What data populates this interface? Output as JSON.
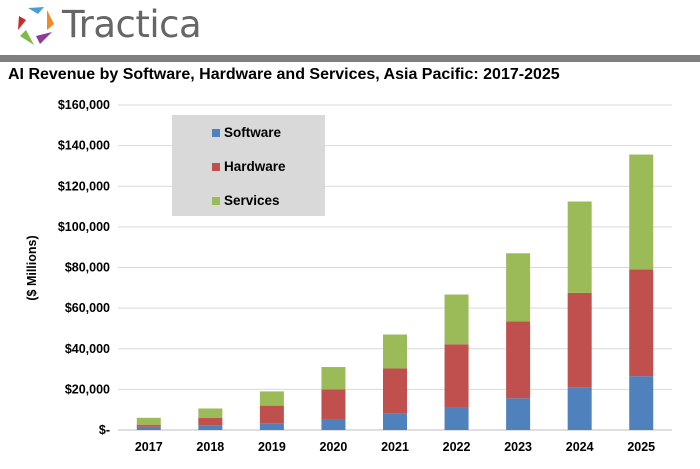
{
  "brand": "Tractica",
  "chart_data": {
    "type": "bar",
    "stacked": true,
    "title": "AI Revenue by Software, Hardware and Services, Asia Pacific: 2017-2025",
    "xlabel": "",
    "ylabel": "($ Millions)",
    "ylim": [
      0,
      160000
    ],
    "yticks": [
      0,
      20000,
      40000,
      60000,
      80000,
      100000,
      120000,
      140000,
      160000
    ],
    "ytick_labels": [
      "$-",
      "$20,000",
      "$40,000",
      "$60,000",
      "$80,000",
      "$100,000",
      "$120,000",
      "$140,000",
      "$160,000"
    ],
    "grid": true,
    "legend_position": "top-left",
    "categories": [
      "2017",
      "2018",
      "2019",
      "2020",
      "2021",
      "2022",
      "2023",
      "2024",
      "2025"
    ],
    "series": [
      {
        "name": "Software",
        "color": "#4f81bd",
        "values": [
          1600,
          2300,
          3300,
          5200,
          8000,
          11100,
          15600,
          21000,
          26500
        ]
      },
      {
        "name": "Hardware",
        "color": "#c0504d",
        "values": [
          1000,
          3600,
          8700,
          14800,
          22300,
          31100,
          37900,
          46500,
          52500
        ]
      },
      {
        "name": "Services",
        "color": "#9bbb59",
        "values": [
          3400,
          4700,
          7000,
          11000,
          16700,
          24500,
          33500,
          45000,
          56600
        ]
      }
    ]
  }
}
